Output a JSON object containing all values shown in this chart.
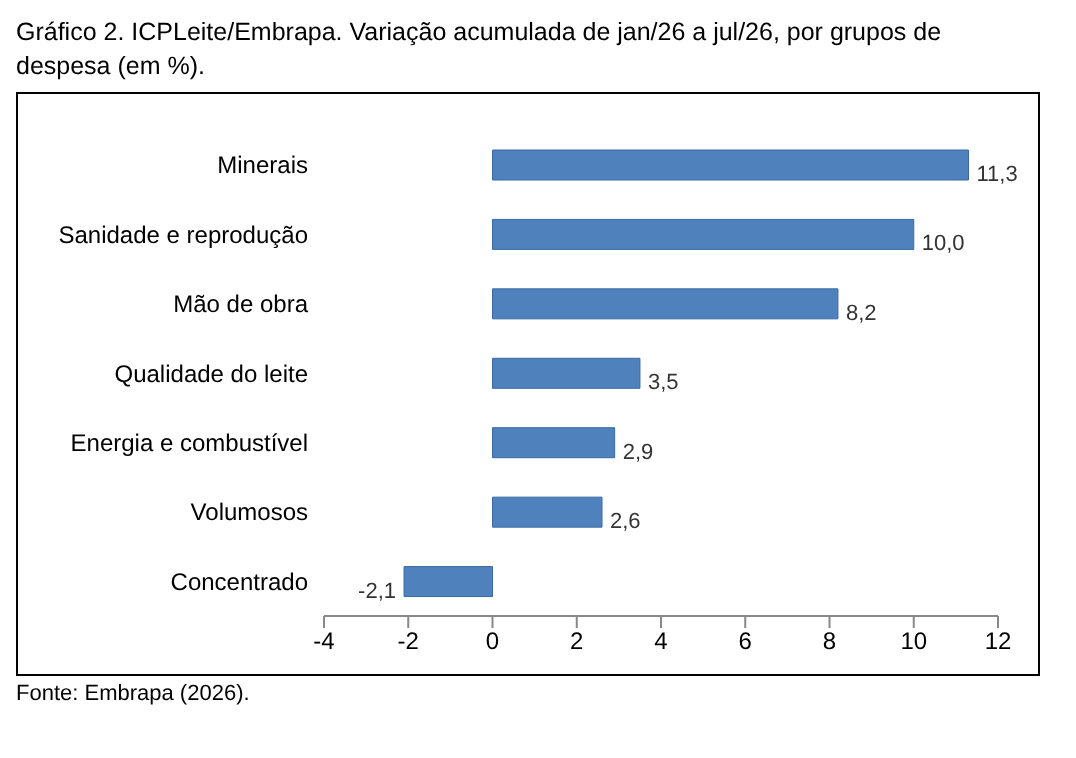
{
  "chart_data": {
    "type": "bar",
    "orientation": "horizontal",
    "title": "Gráfico 2. ICPLeite/Embrapa. Variação acumulada de jan/26 a jul/26, por grupos de despesa (em %).",
    "categories": [
      "Minerais",
      "Sanidade e reprodução",
      "Mão de obra",
      "Qualidade do leite",
      "Energia e combustível",
      "Volumosos",
      "Concentrado"
    ],
    "values": [
      11.3,
      10.0,
      8.2,
      3.5,
      2.9,
      2.6,
      -2.1
    ],
    "value_labels": [
      "11,3",
      "10,0",
      "8,2",
      "3,5",
      "2,9",
      "2,6",
      "-2,1"
    ],
    "color": "#4f81bd",
    "xlim": [
      -4,
      12
    ],
    "xticks": [
      -4,
      -2,
      0,
      2,
      4,
      6,
      8,
      10,
      12
    ],
    "grid": false,
    "legend": false,
    "annotations": [
      "Fonte: Embrapa (2026)."
    ]
  }
}
